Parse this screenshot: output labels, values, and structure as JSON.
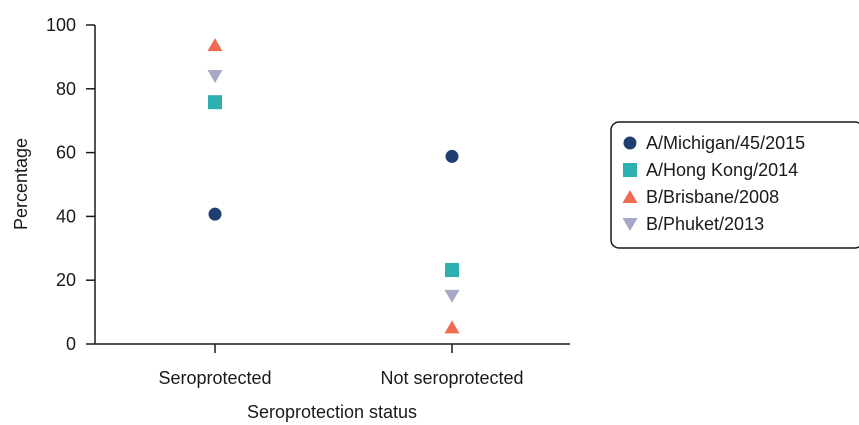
{
  "chart_data": {
    "type": "scatter",
    "title": "",
    "xlabel": "Seroprotection status",
    "ylabel": "Percentage",
    "categories": [
      "Seroprotected",
      "Not seroprotected"
    ],
    "ylim": [
      0,
      100
    ],
    "yticks": [
      0,
      20,
      40,
      60,
      80,
      100
    ],
    "grid": false,
    "legend_position": "right",
    "series": [
      {
        "name": "A/Michigan/45/2015",
        "marker": "circle",
        "color": "#1f3f73",
        "values": [
          40.7,
          58.8
        ]
      },
      {
        "name": "A/Hong Kong/2014",
        "marker": "square",
        "color": "#2fb0b0",
        "values": [
          75.8,
          23.2
        ]
      },
      {
        "name": "B/Brisbane/2008",
        "marker": "triangle-up",
        "color": "#f06b52",
        "values": [
          93.7,
          5.2
        ]
      },
      {
        "name": "B/Phuket/2013",
        "marker": "triangle-down",
        "color": "#a5a8c6",
        "values": [
          84.0,
          15.1
        ]
      }
    ]
  }
}
